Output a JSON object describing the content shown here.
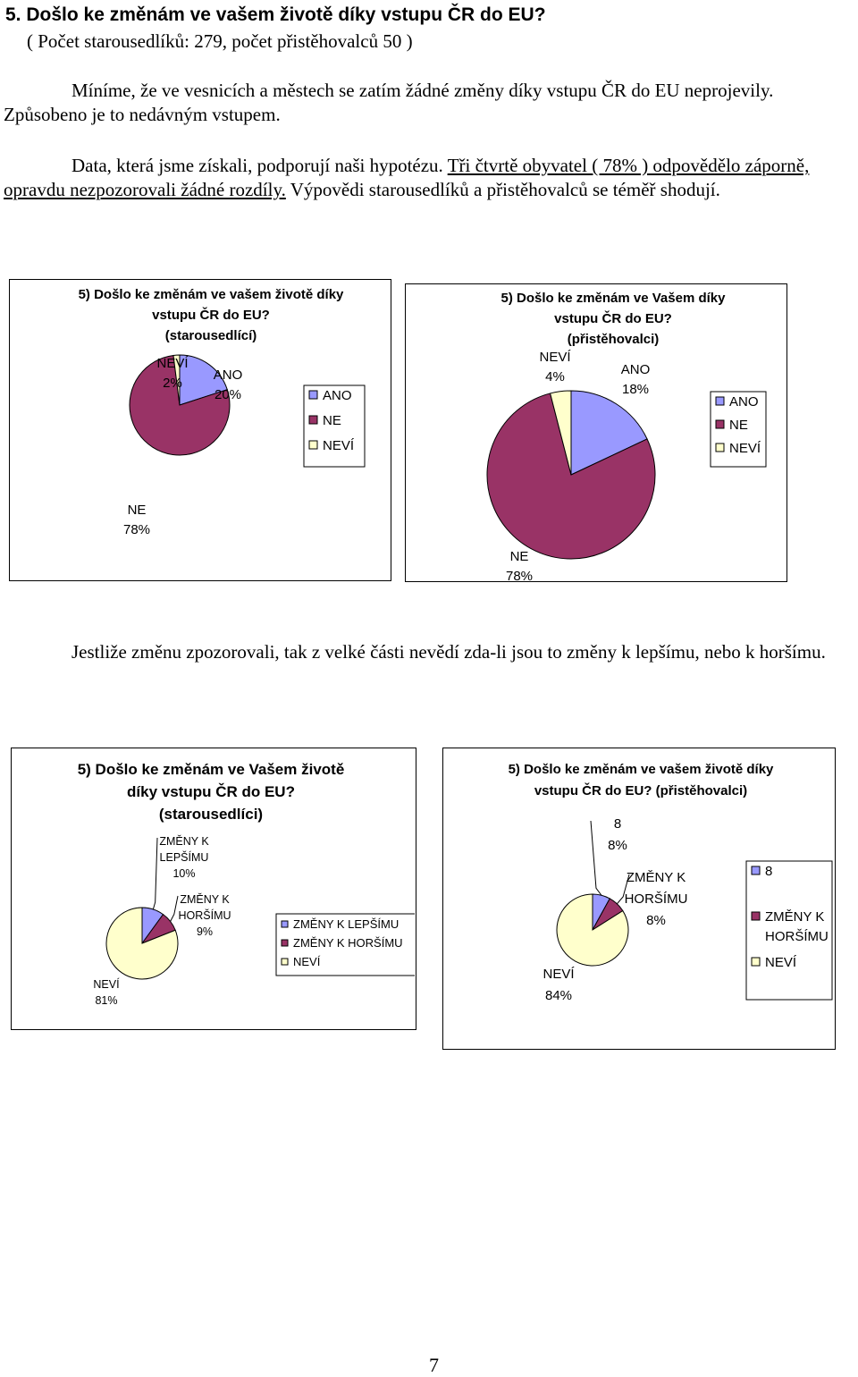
{
  "heading": "5. Došlo ke změnám ve vašem životě díky vstupu ČR do EU?",
  "subheading": "( Počet starousedlíků: 279, počet přistěhovalců 50 )",
  "paragraphs": {
    "p1": "Míníme, že ve vesnicích a městech se zatím žádné změny díky vstupu ČR do EU neprojevily. Způsobeno je to nedávným vstupem.",
    "p2_before": "Data, která jsme získali, podporují naši hypotézu. ",
    "p2_underlined": "Tři čtvrtě obyvatel ( 78% ) odpovědělo záporně, opravdu nezpozorovali žádné rozdíly.",
    "p2_after": " Výpovědi starousedlíků a přistěhovalců se téměř shodují.",
    "p3": "Jestliže změnu zpozorovali, tak z velké části nevědí zda-li jsou to změny k lepšímu, nebo k horšímu."
  },
  "page_number": "7",
  "chart_data": [
    {
      "type": "pie",
      "title": [
        "5) Došlo ke změnám ve vašem životě díky",
        "vstupu ČR do EU?",
        "(starousedlící)"
      ],
      "categories": [
        "ANO",
        "NE",
        "NEVÍ"
      ],
      "values": [
        20,
        78,
        2
      ],
      "slice_labels": [
        [
          "ANO",
          "20%"
        ],
        [
          "NE",
          "78%"
        ],
        [
          "NEVÍ",
          "2%"
        ]
      ],
      "legend": [
        "ANO",
        "NE",
        "NEVÍ"
      ],
      "legend_position": "right",
      "colors": [
        "#9999ff",
        "#993366",
        "#ffffcc"
      ]
    },
    {
      "type": "pie",
      "title": [
        "5) Došlo ke změnám ve Vašem díky",
        "vstupu ČR do EU?",
        "(přistěhovalci)"
      ],
      "categories": [
        "ANO",
        "NE",
        "NEVÍ"
      ],
      "values": [
        18,
        78,
        4
      ],
      "slice_labels": [
        [
          "ANO",
          "18%"
        ],
        [
          "NE",
          "78%"
        ],
        [
          "NEVÍ",
          "4%"
        ]
      ],
      "legend": [
        "ANO",
        "NE",
        "NEVÍ"
      ],
      "legend_position": "right",
      "colors": [
        "#9999ff",
        "#993366",
        "#ffffcc"
      ]
    },
    {
      "type": "pie",
      "title": [
        "5) Došlo ke změnám ve Vašem životě",
        "díky vstupu ČR do EU?",
        "(starousedlíci)"
      ],
      "categories": [
        "ZMĚNY K LEPŠÍMU",
        "ZMĚNY K HORŠÍMU",
        "NEVÍ"
      ],
      "values": [
        10,
        9,
        81
      ],
      "slice_labels": [
        [
          "ZMĚNY K",
          "LEPŠÍMU",
          "10%"
        ],
        [
          "ZMĚNY K",
          "HORŠÍMU",
          "9%"
        ],
        [
          "NEVÍ",
          "81%"
        ]
      ],
      "legend": [
        "ZMĚNY K LEPŠÍMU",
        "ZMĚNY K HORŠÍMU",
        "NEVÍ"
      ],
      "legend_position": "right",
      "colors": [
        "#9999ff",
        "#993366",
        "#ffffcc"
      ]
    },
    {
      "type": "pie",
      "title": [
        "5) Došlo ke změnám ve vašem životě díky",
        "vstupu ČR do EU? (přistěhovalci)"
      ],
      "categories": [
        "8",
        "ZMĚNY K HORŠÍMU",
        "NEVÍ"
      ],
      "values": [
        8,
        8,
        84
      ],
      "slice_labels": [
        [
          "8",
          "8%"
        ],
        [
          "ZMĚNY K",
          "HORŠÍMU",
          "8%"
        ],
        [
          "NEVÍ",
          "84%"
        ]
      ],
      "legend": [
        [
          "8"
        ],
        [
          "ZMĚNY K",
          "HORŠÍMU"
        ],
        [
          "NEVÍ"
        ]
      ],
      "legend_position": "right",
      "colors": [
        "#9999ff",
        "#993366",
        "#ffffcc"
      ]
    }
  ]
}
